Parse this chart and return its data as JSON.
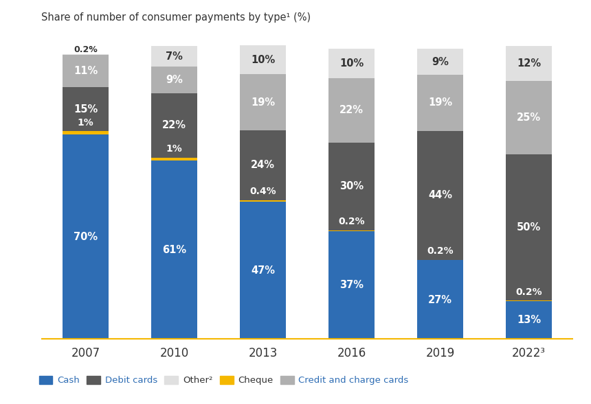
{
  "years": [
    "2007",
    "2010",
    "2013",
    "2016",
    "2019",
    "2022³"
  ],
  "values": {
    "Cash": [
      70,
      61,
      47,
      37,
      27,
      13
    ],
    "Cheque": [
      1,
      1,
      0.4,
      0.2,
      0.2,
      0.2
    ],
    "Debit cards": [
      15,
      22,
      24,
      30,
      44,
      50
    ],
    "Credit and charge cards": [
      11,
      9,
      19,
      22,
      19,
      25
    ],
    "Other²": [
      0.2,
      7,
      10,
      10,
      9,
      12
    ]
  },
  "colors": {
    "Cash": "#2e6db4",
    "Cheque": "#f5b800",
    "Debit cards": "#5a5a5a",
    "Credit and charge cards": "#b0b0b0",
    "Other²": "#e0e0e0"
  },
  "labels": {
    "Cash": [
      "70%",
      "61%",
      "47%",
      "37%",
      "27%",
      "13%"
    ],
    "Cheque": [
      "1%",
      "1%",
      "0.4%",
      "0.2%",
      "0.2%",
      "0.2%"
    ],
    "Debit cards": [
      "15%",
      "22%",
      "24%",
      "30%",
      "44%",
      "50%"
    ],
    "Credit and charge cards": [
      "11%",
      "9%",
      "19%",
      "22%",
      "19%",
      "25%"
    ],
    "Other²": [
      "0.2%",
      "7%",
      "10%",
      "10%",
      "9%",
      "12%"
    ]
  },
  "title": "Share of number of consumer payments by type¹ (%)",
  "background_color": "#ffffff",
  "spine_color": "#f5b800",
  "stack_order": [
    "Cash",
    "Cheque",
    "Debit cards",
    "Credit and charge cards",
    "Other²"
  ],
  "legend_order": [
    "Cash",
    "Debit cards",
    "Other²",
    "Cheque",
    "Credit and charge cards"
  ]
}
